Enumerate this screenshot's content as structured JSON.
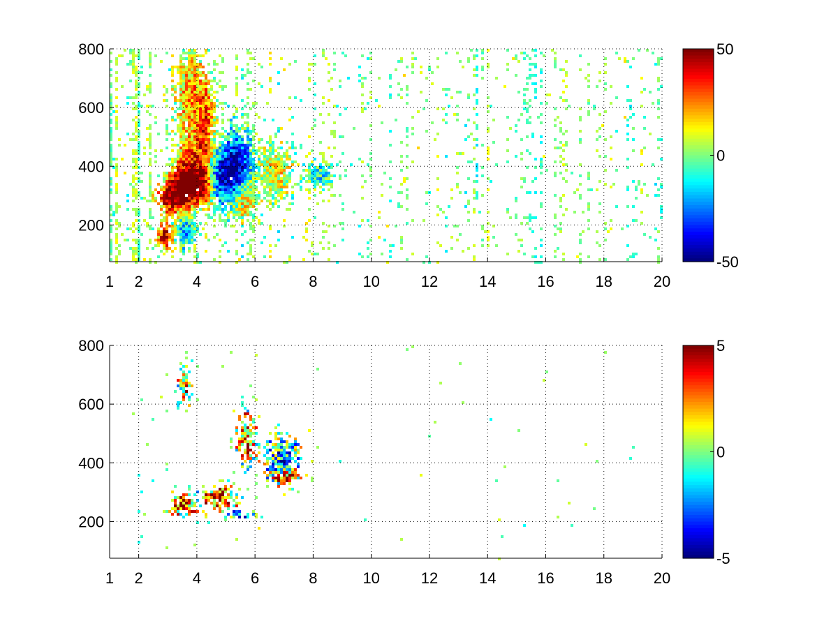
{
  "chart_data": [
    {
      "type": "heatmap",
      "title": "",
      "xlabel": "",
      "ylabel": "",
      "xlim": [
        1,
        20
      ],
      "ylim": [
        75,
        800
      ],
      "x_ticks": [
        1,
        2,
        4,
        6,
        8,
        10,
        12,
        14,
        16,
        18,
        20
      ],
      "x_tick_labels": [
        "1",
        "2",
        "4",
        "6",
        "8",
        "10",
        "12",
        "14",
        "16",
        "18",
        "20"
      ],
      "y_ticks": [
        200,
        400,
        600,
        800
      ],
      "y_tick_labels": [
        "200",
        "400",
        "600",
        "800"
      ],
      "grid": true,
      "colormap": "jet",
      "colorbar": {
        "range": [
          -50,
          50
        ],
        "ticks": [
          50,
          0,
          -50
        ],
        "tick_labels": [
          "50",
          "0",
          "-50"
        ]
      },
      "features": [
        {
          "x": 2.9,
          "y": 160,
          "value": 45,
          "sx": 0.18,
          "sy": 30
        },
        {
          "x": 3.1,
          "y": 290,
          "value": 40,
          "sx": 0.35,
          "sy": 40
        },
        {
          "x": 3.6,
          "y": 330,
          "value": 45,
          "sx": 0.35,
          "sy": 45
        },
        {
          "x": 3.8,
          "y": 400,
          "value": 30,
          "sx": 0.35,
          "sy": 70
        },
        {
          "x": 3.8,
          "y": 640,
          "value": 22,
          "sx": 0.35,
          "sy": 100
        },
        {
          "x": 4.3,
          "y": 520,
          "value": 30,
          "sx": 0.2,
          "sy": 120
        },
        {
          "x": 4.2,
          "y": 330,
          "value": 35,
          "sx": 0.25,
          "sy": 40
        },
        {
          "x": 5.0,
          "y": 360,
          "value": -40,
          "sx": 0.45,
          "sy": 60
        },
        {
          "x": 5.4,
          "y": 420,
          "value": -30,
          "sx": 0.35,
          "sy": 80
        },
        {
          "x": 5.6,
          "y": 300,
          "value": 25,
          "sx": 0.3,
          "sy": 50
        },
        {
          "x": 3.6,
          "y": 180,
          "value": -20,
          "sx": 0.25,
          "sy": 40
        },
        {
          "x": 6.7,
          "y": 380,
          "value": 12,
          "sx": 0.4,
          "sy": 60
        },
        {
          "x": 8.2,
          "y": 370,
          "value": -12,
          "sx": 0.3,
          "sy": 30
        }
      ]
    },
    {
      "type": "heatmap",
      "title": "",
      "xlabel": "",
      "ylabel": "",
      "xlim": [
        1,
        20
      ],
      "ylim": [
        75,
        800
      ],
      "x_ticks": [
        1,
        2,
        4,
        6,
        8,
        10,
        12,
        14,
        16,
        18,
        20
      ],
      "x_tick_labels": [
        "1",
        "2",
        "4",
        "6",
        "8",
        "10",
        "12",
        "14",
        "16",
        "18",
        "20"
      ],
      "y_ticks": [
        200,
        400,
        600,
        800
      ],
      "y_tick_labels": [
        "200",
        "400",
        "600",
        "800"
      ],
      "grid": true,
      "colormap": "jet",
      "colorbar": {
        "range": [
          -5,
          5
        ],
        "ticks": [
          5,
          0,
          -5
        ],
        "tick_labels": [
          "5",
          "0",
          "-5"
        ]
      },
      "features": [
        {
          "x": 3.5,
          "y": 260,
          "value": 4,
          "sx": 0.3,
          "sy": 25
        },
        {
          "x": 4.8,
          "y": 280,
          "value": 4,
          "sx": 0.4,
          "sy": 25
        },
        {
          "x": 7.1,
          "y": 350,
          "value": 4.5,
          "sx": 0.3,
          "sy": 15
        },
        {
          "x": 5.7,
          "y": 480,
          "value": 3,
          "sx": 0.2,
          "sy": 60
        },
        {
          "x": 5.4,
          "y": 225,
          "value": -4,
          "sx": 0.3,
          "sy": 10
        },
        {
          "x": 3.6,
          "y": 660,
          "value": 2.5,
          "sx": 0.15,
          "sy": 40
        },
        {
          "x": 6.9,
          "y": 420,
          "value": -2,
          "sx": 0.4,
          "sy": 50
        }
      ]
    }
  ]
}
